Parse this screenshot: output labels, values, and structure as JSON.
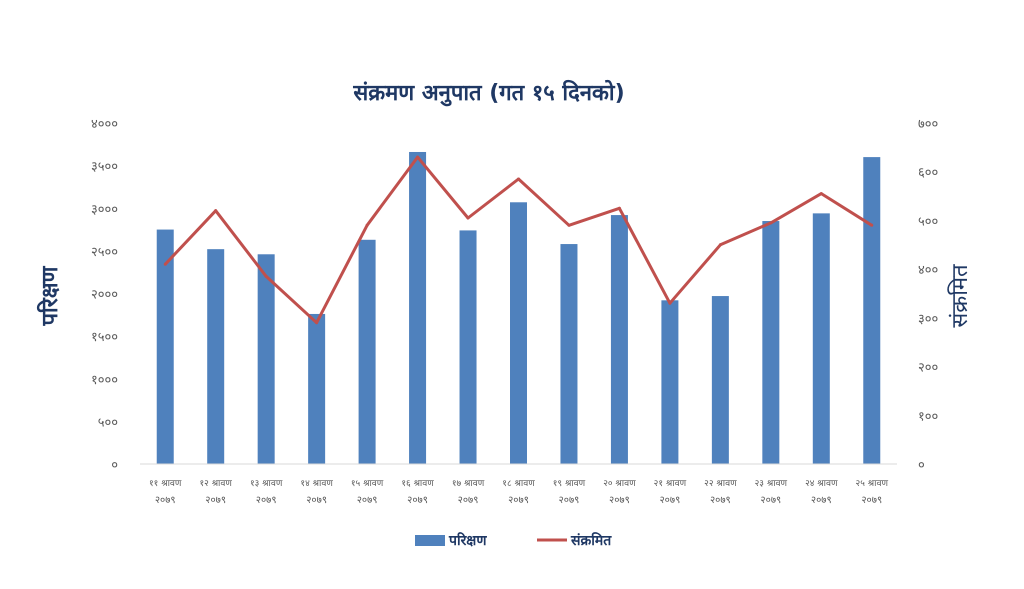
{
  "chart_data": {
    "type": "bar",
    "title": "संक्रमण अनुपात (गत १५ दिनको)",
    "ylabel": "परिक्षण",
    "y2label": "संक्रमित",
    "ylim": [
      0,
      4000
    ],
    "y2lim": [
      0,
      700
    ],
    "yticks": [
      "०",
      "५००",
      "१०००",
      "१५००",
      "२०००",
      "२५००",
      "३०००",
      "३५००",
      "४०००"
    ],
    "y2ticks": [
      "०",
      "१००",
      "२००",
      "३००",
      "४००",
      "५००",
      "६००",
      "७००"
    ],
    "categories": [
      {
        "day": "११ श्रावण",
        "year": "२०७९"
      },
      {
        "day": "१२ श्रावण",
        "year": "२०७९"
      },
      {
        "day": "१३ श्रावण",
        "year": "२०७९"
      },
      {
        "day": "१४ श्रावण",
        "year": "२०७९"
      },
      {
        "day": "१५ श्रावण",
        "year": "२०७९"
      },
      {
        "day": "१६ श्रावण",
        "year": "२०७९"
      },
      {
        "day": "१७ श्रावण",
        "year": "२०७९"
      },
      {
        "day": "१८ श्रावण",
        "year": "२०७९"
      },
      {
        "day": "१९ श्रावण",
        "year": "२०७९"
      },
      {
        "day": "२० श्रावण",
        "year": "२०७९"
      },
      {
        "day": "२१ श्रावण",
        "year": "२०७९"
      },
      {
        "day": "२२ श्रावण",
        "year": "२०७९"
      },
      {
        "day": "२३ श्रावण",
        "year": "२०७९"
      },
      {
        "day": "२४ श्रावण",
        "year": "२०७९"
      },
      {
        "day": "२५ श्रावण",
        "year": "२०७९"
      }
    ],
    "series": [
      {
        "name": "परिक्षण",
        "type": "bar",
        "axis": "left",
        "color": "#4f81bd",
        "values": [
          2750,
          2520,
          2460,
          1760,
          2630,
          3660,
          2740,
          3070,
          2580,
          2920,
          1920,
          1970,
          2850,
          2940,
          3600
        ]
      },
      {
        "name": "संक्रमित",
        "type": "line",
        "axis": "right",
        "color": "#c0504d",
        "values": [
          410,
          520,
          385,
          290,
          490,
          630,
          505,
          585,
          490,
          525,
          330,
          450,
          495,
          555,
          490
        ]
      }
    ],
    "legend_position": "bottom",
    "grid": false,
    "colors": {
      "title": "#1f3864",
      "axis_label": "#1f3864",
      "tick": "#595959",
      "axis_line": "#d9d9d9"
    }
  }
}
